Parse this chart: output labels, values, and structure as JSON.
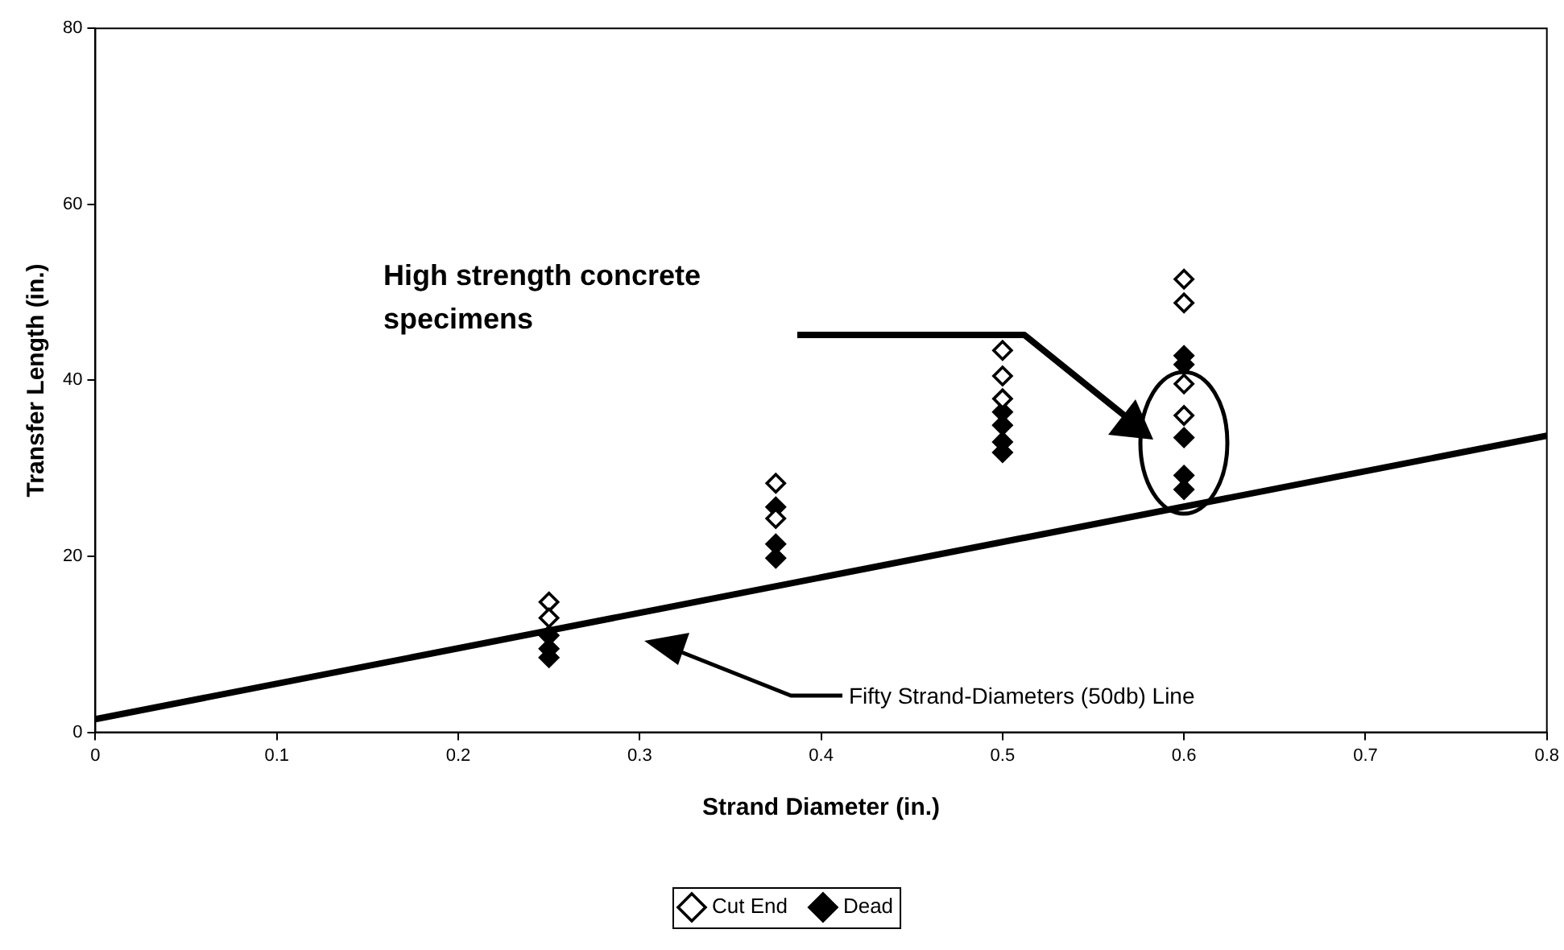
{
  "chart_data": {
    "type": "scatter",
    "xlabel": "Strand Diameter (in.)",
    "ylabel": "Transfer Length (in.)",
    "xlim": [
      0,
      0.8
    ],
    "xticks": [
      0,
      0.1,
      0.2,
      0.3,
      0.4,
      0.5,
      0.6,
      0.7,
      0.8
    ],
    "ylim": [
      0,
      80
    ],
    "yticks": [
      0,
      20,
      40,
      60,
      80
    ],
    "grid": false,
    "legend": "bottom",
    "marker": "diamond",
    "series": [
      {
        "name": "Cut End",
        "color": "#000000",
        "x": [
          0.25,
          0.25,
          0.375,
          0.375,
          0.5,
          0.5,
          0.5,
          0.6,
          0.6,
          0.6,
          0.6
        ],
        "values": [
          14.8,
          13,
          28.3,
          24.3,
          43.4,
          40.5,
          37.9,
          51.5,
          48.8,
          39.6,
          36
        ]
      },
      {
        "name": "Dead",
        "color": "#000000",
        "x": [
          0.25,
          0.25,
          0.25,
          0.375,
          0.375,
          0.375,
          0.5,
          0.5,
          0.5,
          0.5,
          0.6,
          0.6,
          0.6,
          0.6,
          0.6
        ],
        "values": [
          11,
          9.5,
          8.5,
          25.6,
          21.4,
          19.8,
          36.4,
          34.9,
          33,
          31.8,
          42.8,
          41.8,
          33.5,
          29.2,
          27.6
        ]
      },
      {
        "type": "line",
        "marker": "none",
        "color": "#000000",
        "x": [
          0,
          0.8
        ],
        "values": [
          1.5,
          33.7
        ]
      }
    ],
    "annotations": [
      "High strength concrete specimens",
      "Fifty Strand-Diameters (50db) Line"
    ]
  }
}
